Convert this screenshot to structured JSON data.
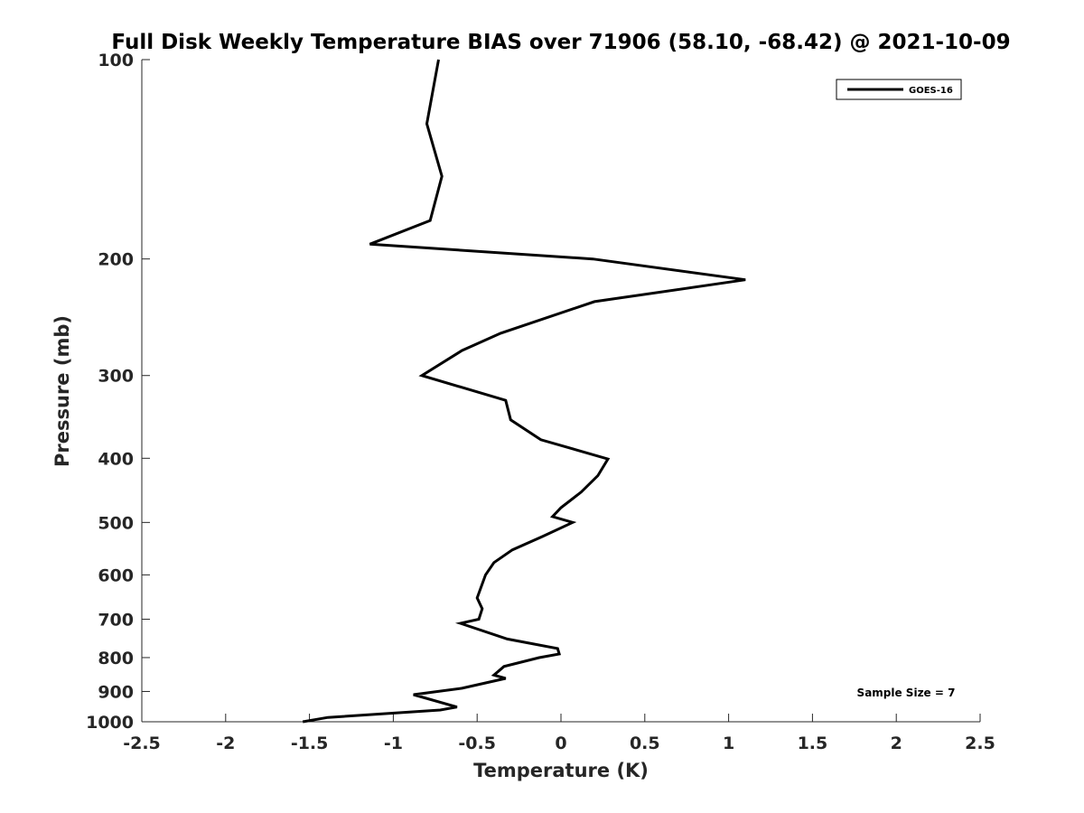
{
  "chart_data": {
    "type": "line",
    "title": "Full Disk Weekly Temperature BIAS over 71906 (58.10, -68.42) @ 2021-10-09",
    "xlabel": "Temperature (K)",
    "ylabel": "Pressure (mb)",
    "xlim": [
      -2.5,
      2.5
    ],
    "ylim": [
      100,
      1000
    ],
    "y_scale": "log",
    "y_reversed": true,
    "grid": false,
    "legend_position": "top-right",
    "x_ticks": [
      -2.5,
      -2,
      -1.5,
      -1,
      -0.5,
      0,
      0.5,
      1,
      1.5,
      2,
      2.5
    ],
    "x_tick_labels": [
      "-2.5",
      "-2",
      "-1.5",
      "-1",
      "-0.5",
      "0",
      "0.5",
      "1",
      "1.5",
      "2",
      "2.5"
    ],
    "y_ticks": [
      100,
      200,
      300,
      400,
      500,
      600,
      700,
      800,
      900,
      1000
    ],
    "y_tick_labels": [
      "100",
      "200",
      "300",
      "400",
      "500",
      "600",
      "700",
      "800",
      "900",
      "1000"
    ],
    "series": [
      {
        "name": "GOES-16",
        "color": "#000000",
        "points": [
          {
            "x": -0.73,
            "p": 100
          },
          {
            "x": -0.8,
            "p": 125
          },
          {
            "x": -0.71,
            "p": 150
          },
          {
            "x": -0.78,
            "p": 175
          },
          {
            "x": -1.14,
            "p": 190
          },
          {
            "x": 0.19,
            "p": 200
          },
          {
            "x": 1.1,
            "p": 215
          },
          {
            "x": 0.2,
            "p": 232
          },
          {
            "x": -0.36,
            "p": 259
          },
          {
            "x": -0.59,
            "p": 275
          },
          {
            "x": -0.83,
            "p": 300
          },
          {
            "x": -0.33,
            "p": 327
          },
          {
            "x": -0.3,
            "p": 350
          },
          {
            "x": -0.12,
            "p": 375
          },
          {
            "x": 0.28,
            "p": 401
          },
          {
            "x": 0.22,
            "p": 425
          },
          {
            "x": 0.12,
            "p": 450
          },
          {
            "x": 0.0,
            "p": 475
          },
          {
            "x": -0.05,
            "p": 490
          },
          {
            "x": 0.07,
            "p": 500
          },
          {
            "x": -0.11,
            "p": 525
          },
          {
            "x": -0.29,
            "p": 550
          },
          {
            "x": -0.4,
            "p": 575
          },
          {
            "x": -0.45,
            "p": 600
          },
          {
            "x": -0.5,
            "p": 650
          },
          {
            "x": -0.47,
            "p": 675
          },
          {
            "x": -0.49,
            "p": 700
          },
          {
            "x": -0.6,
            "p": 710
          },
          {
            "x": -0.32,
            "p": 750
          },
          {
            "x": -0.02,
            "p": 775
          },
          {
            "x": -0.01,
            "p": 790
          },
          {
            "x": -0.13,
            "p": 800
          },
          {
            "x": -0.34,
            "p": 825
          },
          {
            "x": -0.4,
            "p": 850
          },
          {
            "x": -0.33,
            "p": 860
          },
          {
            "x": -0.59,
            "p": 890
          },
          {
            "x": -0.88,
            "p": 910
          },
          {
            "x": -0.62,
            "p": 950
          },
          {
            "x": -0.72,
            "p": 960
          },
          {
            "x": -1.39,
            "p": 985
          },
          {
            "x": -1.54,
            "p": 1000
          }
        ]
      }
    ],
    "annotations": [
      {
        "text": "Sample Size = 7"
      }
    ]
  }
}
